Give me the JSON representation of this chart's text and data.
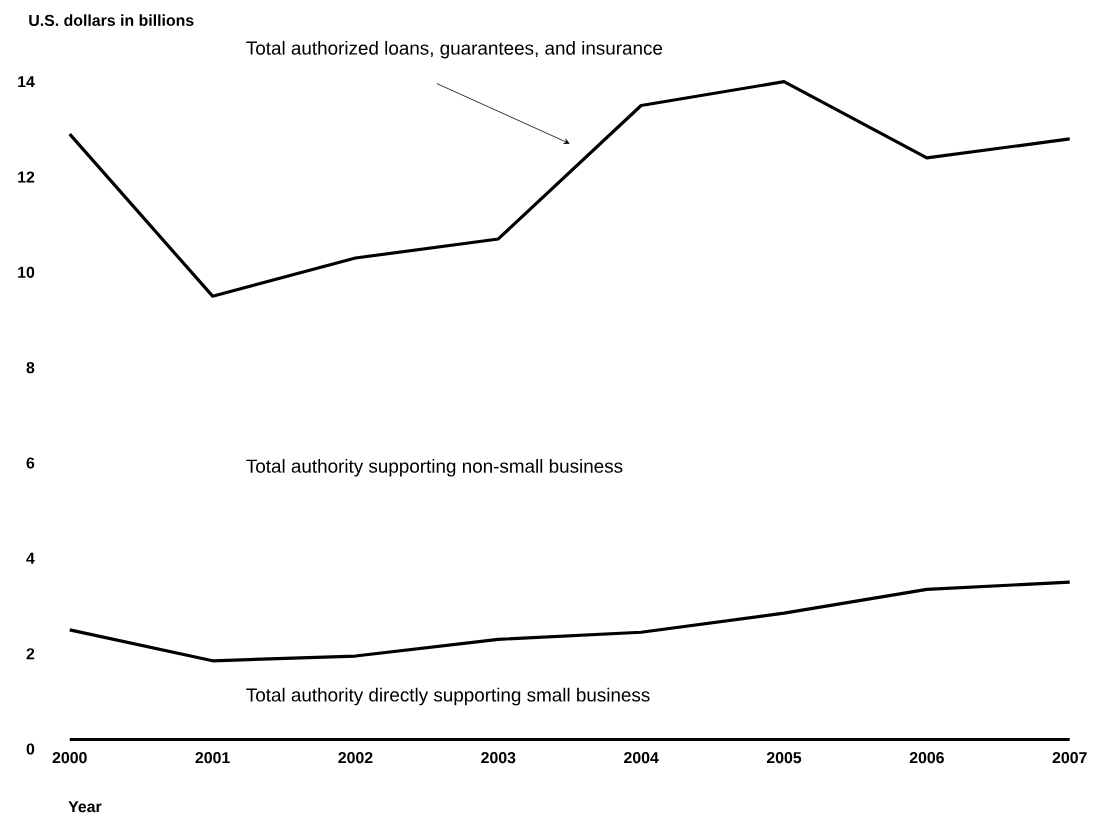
{
  "chart_data": {
    "type": "line",
    "xlabel": "Year",
    "ylabel": "U.S. dollars in billions",
    "x": [
      2000,
      2001,
      2002,
      2003,
      2004,
      2005,
      2006,
      2007
    ],
    "xlim": [
      2000,
      2007
    ],
    "xticks": [
      2000,
      2001,
      2002,
      2003,
      2004,
      2005,
      2006,
      2007
    ],
    "ylim": [
      0,
      14
    ],
    "yticks": [
      0,
      2,
      4,
      6,
      8,
      10,
      12,
      14
    ],
    "grid": false,
    "legend": false,
    "marker": "none",
    "line_style": "solid",
    "annotations": [
      "Total authority supporting non-small business",
      "Total authority directly supporting small business"
    ],
    "series": [
      {
        "name": "Total authorized loans, guarantees, and insurance",
        "color": "#000000",
        "values": [
          12.9,
          9.5,
          10.3,
          10.7,
          13.5,
          14,
          12.4,
          12.8
        ]
      },
      {
        "color": "#000000",
        "values": [
          2.5,
          1.85,
          1.95,
          2.3,
          2.45,
          2.85,
          3.35,
          3.5
        ]
      },
      {
        "color": "#000000",
        "values": [
          0.2,
          0.2,
          0.2,
          0.2,
          0.2,
          0.2,
          0.2,
          0.2
        ]
      }
    ]
  }
}
